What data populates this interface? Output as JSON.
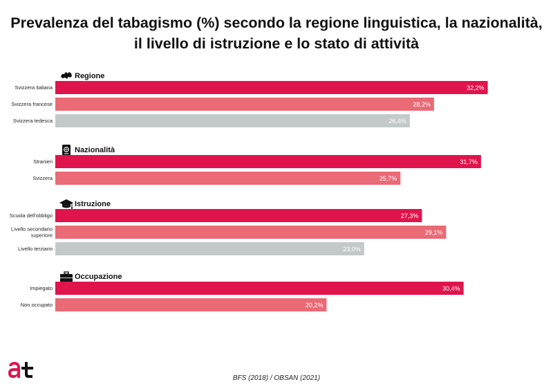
{
  "title_line1": "Prevalenza del tabagismo (%) secondo la regione linguistica, la nazionalità,",
  "title_line2": "il livello di istruzione e lo stato di attività",
  "source": "BFS (2018) / OBSAN (2021)",
  "colors": {
    "primary": "#e0144c",
    "secondary": "#ea6a76",
    "neutral": "#c3c9c9"
  },
  "chart_data": {
    "type": "bar",
    "orientation": "horizontal",
    "xlim": [
      0,
      35
    ],
    "grid": false,
    "groups": [
      {
        "name": "Regione",
        "icon": "switzerland-map-icon",
        "bars": [
          {
            "label": "Svizzera italiana",
            "value": 32.2,
            "value_label": "32,2%",
            "color": "primary"
          },
          {
            "label": "Svizzera francese",
            "value": 28.2,
            "value_label": "28,2%",
            "color": "secondary"
          },
          {
            "label": "Svizzera tedesca",
            "value": 26.4,
            "value_label": "26,4%",
            "color": "neutral"
          }
        ]
      },
      {
        "name": "Nazionalità",
        "icon": "passport-icon",
        "bars": [
          {
            "label": "Stranieri",
            "value": 31.7,
            "value_label": "31,7%",
            "color": "primary"
          },
          {
            "label": "Svizzera",
            "value": 25.7,
            "value_label": "25,7%",
            "color": "secondary"
          }
        ]
      },
      {
        "name": "Istruzione",
        "icon": "graduation-cap-icon",
        "bars": [
          {
            "label": "Scuola dell'obbligo",
            "value": 27.3,
            "value_label": "27,3%",
            "color": "primary"
          },
          {
            "label": "Livello secondario superiore",
            "label_lines": [
              "Livello secondario",
              "superiore"
            ],
            "value": 29.1,
            "value_label": "29,1%",
            "color": "secondary"
          },
          {
            "label": "Livello terziario",
            "value": 23.0,
            "value_label": "23,0%",
            "color": "neutral"
          }
        ]
      },
      {
        "name": "Occupazione",
        "icon": "briefcase-icon",
        "bars": [
          {
            "label": "Impiegato",
            "value": 30.4,
            "value_label": "30,4%",
            "color": "primary"
          },
          {
            "label": "Non occupato",
            "value": 20.2,
            "value_label": "20,2%",
            "color": "secondary"
          }
        ]
      }
    ]
  }
}
